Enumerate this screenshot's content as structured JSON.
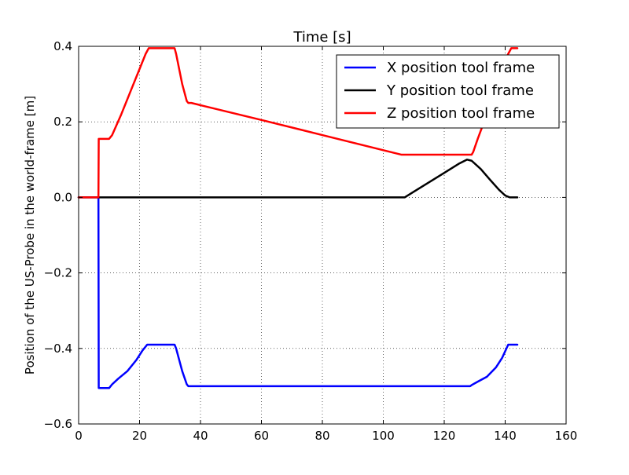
{
  "chart_data": {
    "type": "line",
    "title": "Time [s]",
    "xlabel": "",
    "ylabel": "Position of the US-Probe in the world-frame [m]",
    "xlim": [
      0,
      160
    ],
    "ylim": [
      -0.6,
      0.4
    ],
    "xticks": [
      0,
      20,
      40,
      60,
      80,
      100,
      120,
      140,
      160
    ],
    "yticks": [
      -0.6,
      -0.4,
      -0.2,
      0.0,
      0.2,
      0.4
    ],
    "ytick_labels": [
      "−0.6",
      "−0.4",
      "−0.2",
      "0.0",
      "0.2",
      "0.4"
    ],
    "grid": true,
    "legend_position": "top-right",
    "series": [
      {
        "name": "X position tool frame",
        "color": "#0000ff",
        "x": [
          0,
          6.5,
          6.6,
          10,
          11,
          13,
          16,
          19,
          21,
          22.5,
          31.5,
          32,
          34,
          35.5,
          36,
          40,
          60,
          80,
          100,
          120,
          128.5,
          129,
          131,
          134,
          137,
          139,
          141,
          142,
          144
        ],
        "y": [
          0.0,
          0.0,
          -0.505,
          -0.505,
          -0.495,
          -0.48,
          -0.46,
          -0.43,
          -0.405,
          -0.39,
          -0.39,
          -0.4,
          -0.46,
          -0.495,
          -0.5,
          -0.5,
          -0.5,
          -0.5,
          -0.5,
          -0.5,
          -0.5,
          -0.497,
          -0.488,
          -0.475,
          -0.45,
          -0.425,
          -0.39,
          -0.39,
          -0.39
        ]
      },
      {
        "name": "Y position tool frame",
        "color": "#000000",
        "x": [
          0,
          20,
          40,
          60,
          80,
          100,
          107,
          110,
          115,
          120,
          125,
          127.5,
          129,
          132,
          135,
          138,
          140,
          141.5,
          144
        ],
        "y": [
          0.0,
          0.0,
          0.0,
          0.0,
          0.0,
          0.0,
          0.0,
          0.015,
          0.04,
          0.065,
          0.09,
          0.1,
          0.097,
          0.075,
          0.047,
          0.02,
          0.005,
          0.0,
          0.0
        ]
      },
      {
        "name": "Z position tool frame",
        "color": "#ff0000",
        "x": [
          0,
          6.5,
          6.6,
          10,
          11,
          14,
          17,
          20,
          22,
          23,
          31.5,
          32,
          34,
          35.5,
          36,
          37,
          60,
          80,
          100,
          106,
          120,
          129,
          129.5,
          131,
          134,
          137,
          139,
          141,
          142,
          144
        ],
        "y": [
          0.0,
          0.0,
          0.155,
          0.155,
          0.165,
          0.22,
          0.28,
          0.34,
          0.38,
          0.395,
          0.395,
          0.38,
          0.3,
          0.255,
          0.25,
          0.25,
          0.205,
          0.165,
          0.125,
          0.113,
          0.113,
          0.113,
          0.12,
          0.155,
          0.22,
          0.29,
          0.34,
          0.38,
          0.395,
          0.395
        ]
      }
    ]
  }
}
